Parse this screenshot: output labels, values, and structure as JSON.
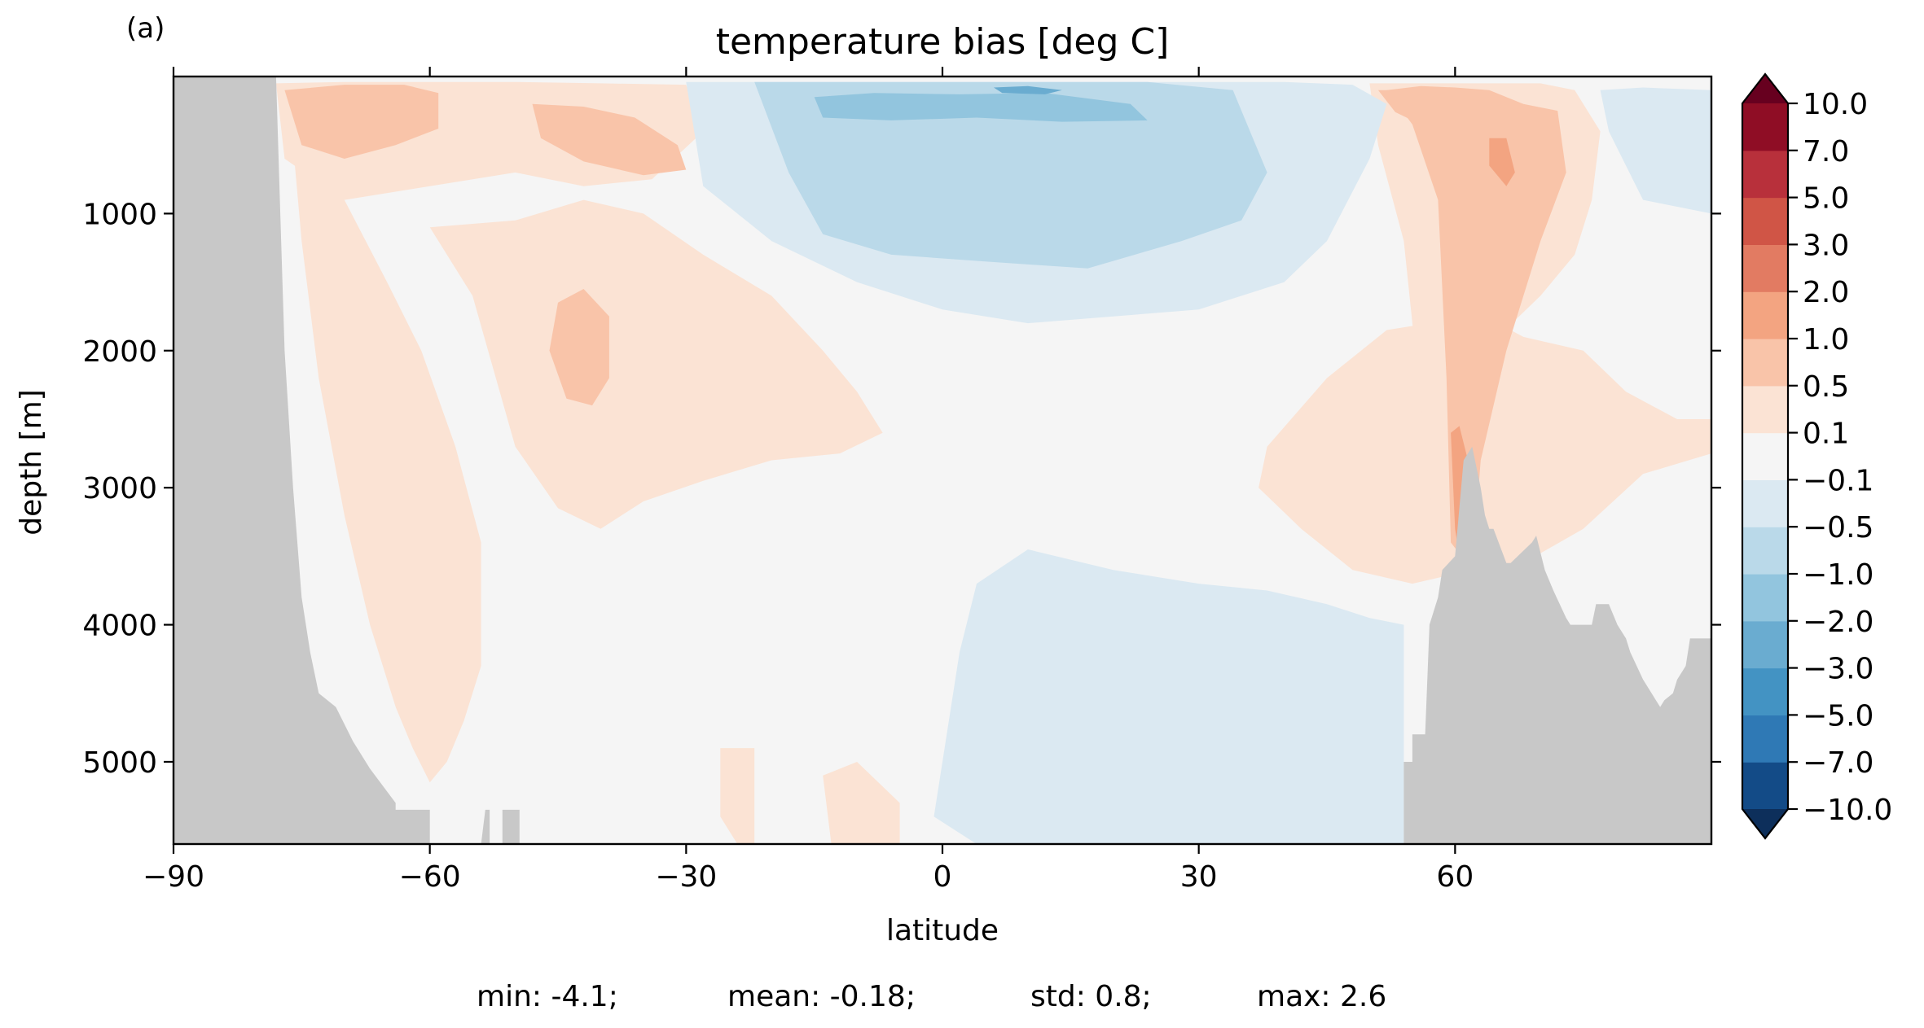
{
  "panel_label": "(a)",
  "chart_data": {
    "type": "heatmap",
    "title": "temperature bias [deg C]",
    "xlabel": "latitude",
    "ylabel": "depth [m]",
    "xlim": [
      -90,
      90
    ],
    "ylim": [
      5600,
      0
    ],
    "y_inverted": true,
    "x_ticks": [
      -90,
      -60,
      -30,
      0,
      30,
      60
    ],
    "x_tick_labels": [
      "−90",
      "−60",
      "−30",
      "0",
      "30",
      "60"
    ],
    "y_ticks": [
      1000,
      2000,
      3000,
      4000,
      5000
    ],
    "y_tick_labels": [
      "1000",
      "2000",
      "3000",
      "4000",
      "5000"
    ],
    "grid": false,
    "land_mask_color": "#c8c8c8",
    "colorbar": {
      "levels": [
        -10,
        -7,
        -5,
        -3,
        -2,
        -1,
        -0.5,
        -0.1,
        0.1,
        0.5,
        1,
        2,
        3,
        5,
        7,
        10
      ],
      "tick_labels": [
        "−10.0",
        "−7.0",
        "−5.0",
        "−3.0",
        "−2.0",
        "−1.0",
        "−0.5",
        "−0.1",
        "0.1",
        "0.5",
        "1.0",
        "2.0",
        "3.0",
        "5.0",
        "7.0",
        "10.0"
      ],
      "colors": [
        "#134b87",
        "#2f79b5",
        "#4393c3",
        "#6aacd0",
        "#92c5de",
        "#bad9e9",
        "#dbe9f2",
        "#f5f5f5",
        "#fbe3d4",
        "#f9c4a9",
        "#f3a481",
        "#e27b62",
        "#d05546",
        "#b8303b",
        "#8f0d25"
      ],
      "extend": "both",
      "under_color": "#0d2f5b",
      "over_color": "#67001f"
    },
    "regions": [
      {
        "name": "southern-deep-warm",
        "value": 0.3,
        "lat": [
          -77.5,
          -76,
          -75,
          -73,
          -70,
          -67,
          -64,
          -62,
          -60,
          -58,
          -56,
          -54,
          -54,
          -57,
          -61,
          -65,
          -70,
          -74,
          -76
        ],
        "depth": [
          100,
          500,
          1200,
          2200,
          3200,
          4000,
          4600,
          4900,
          5150,
          5000,
          4700,
          4300,
          3400,
          2700,
          2000,
          1500,
          900,
          500,
          200
        ]
      },
      {
        "name": "atlantic-mid-warm",
        "value": 0.3,
        "lat": [
          -60,
          -50,
          -42,
          -35,
          -28,
          -20,
          -14,
          -10,
          -7,
          -12,
          -20,
          -28,
          -35,
          -40,
          -45,
          -50,
          -55
        ],
        "depth": [
          1100,
          1050,
          900,
          1000,
          1300,
          1600,
          2000,
          2300,
          2600,
          2750,
          2800,
          2950,
          3100,
          3300,
          3150,
          2700,
          1600
        ]
      },
      {
        "name": "southern-surface-warm",
        "value": 0.3,
        "lat": [
          -78,
          -70,
          -60,
          -50,
          -40,
          -30,
          -28,
          -34,
          -42,
          -50,
          -60,
          -70,
          -77
        ],
        "depth": [
          50,
          40,
          40,
          40,
          50,
          60,
          400,
          750,
          800,
          700,
          800,
          900,
          600
        ]
      },
      {
        "name": "southern-surface-moderate",
        "value": 0.8,
        "lat": [
          -77,
          -70,
          -63,
          -59,
          -59,
          -64,
          -70,
          -75
        ],
        "depth": [
          100,
          60,
          60,
          120,
          380,
          500,
          600,
          500
        ]
      },
      {
        "name": "southern-mid-surface-moderate",
        "value": 0.8,
        "lat": [
          -48,
          -42,
          -36,
          -31,
          -30,
          -35,
          -42,
          -47
        ],
        "depth": [
          200,
          220,
          300,
          500,
          680,
          720,
          620,
          450
        ]
      },
      {
        "name": "southern-intermediate-moderate",
        "value": 0.8,
        "lat": [
          -45,
          -42,
          -39,
          -39,
          -41,
          -44,
          -46
        ],
        "depth": [
          1650,
          1550,
          1750,
          2200,
          2400,
          2350,
          2000
        ]
      },
      {
        "name": "northern-deep-warm",
        "value": 0.3,
        "lat": [
          38,
          45,
          52,
          57,
          62,
          68,
          75,
          80,
          86,
          90,
          90,
          82,
          75,
          68,
          62,
          55,
          48,
          42,
          37
        ],
        "depth": [
          2700,
          2200,
          1850,
          1800,
          1700,
          1900,
          2000,
          2300,
          2500,
          2500,
          2750,
          2900,
          3300,
          3550,
          3600,
          3700,
          3600,
          3300,
          3000
        ]
      },
      {
        "name": "northern-column-warm",
        "value": 0.3,
        "lat": [
          50,
          55,
          60,
          65,
          70,
          74,
          77,
          76,
          74,
          70,
          65,
          60,
          58,
          54,
          51
        ],
        "depth": [
          50,
          50,
          50,
          50,
          50,
          100,
          400,
          900,
          1300,
          1600,
          1900,
          2500,
          3600,
          1200,
          500
        ]
      },
      {
        "name": "northern-column-moderate",
        "value": 0.8,
        "lat": [
          52,
          56,
          60,
          64,
          68,
          72,
          73,
          70,
          66,
          63,
          62,
          59.5,
          59,
          58,
          55
        ],
        "depth": [
          100,
          70,
          80,
          100,
          200,
          250,
          700,
          1200,
          2000,
          2800,
          3600,
          3400,
          2200,
          900,
          350
        ]
      },
      {
        "name": "northern-column-strong",
        "value": 1.5,
        "lat": [
          59.5,
          60.5,
          61.5,
          62,
          61,
          60
        ],
        "depth": [
          2600,
          2550,
          2800,
          3200,
          3700,
          3300
        ]
      },
      {
        "name": "northern-surface-moderate",
        "value": 0.8,
        "lat": [
          51,
          57,
          59,
          57,
          53
        ],
        "depth": [
          100,
          100,
          200,
          380,
          260
        ]
      },
      {
        "name": "northern-subsurface-strong",
        "value": 1.5,
        "lat": [
          64,
          66,
          67,
          66,
          64
        ],
        "depth": [
          450,
          450,
          700,
          800,
          650
        ]
      },
      {
        "name": "deep-south-warm-patch",
        "value": 0.3,
        "lat": [
          -26,
          -22,
          -22,
          -24,
          -26
        ],
        "depth": [
          4900,
          4900,
          5600,
          5600,
          5400
        ]
      },
      {
        "name": "deep-tropical-warm-patch",
        "value": 0.3,
        "lat": [
          -14,
          -10,
          -5,
          -5,
          -13
        ],
        "depth": [
          5100,
          5000,
          5300,
          5600,
          5600
        ]
      },
      {
        "name": "upper-cold",
        "value": -0.3,
        "lat": [
          -30,
          -20,
          -10,
          0,
          10,
          20,
          30,
          40,
          48,
          52,
          50,
          45,
          40,
          30,
          20,
          10,
          0,
          -10,
          -20,
          -28
        ],
        "depth": [
          40,
          40,
          40,
          40,
          40,
          40,
          40,
          40,
          60,
          200,
          600,
          1200,
          1500,
          1700,
          1750,
          1800,
          1700,
          1500,
          1200,
          800
        ]
      },
      {
        "name": "deep-equatorial-cold",
        "value": -0.3,
        "lat": [
          4,
          10,
          20,
          30,
          38,
          45,
          50,
          54,
          54,
          40,
          20,
          10,
          4,
          -1,
          2
        ],
        "depth": [
          3700,
          3450,
          3600,
          3700,
          3750,
          3850,
          3950,
          4000,
          5600,
          5600,
          5600,
          5600,
          5600,
          5400,
          4200
        ]
      },
      {
        "name": "upper-cold-moderate",
        "value": -0.8,
        "lat": [
          -22,
          -12,
          0,
          12,
          24,
          34,
          38,
          35,
          28,
          17,
          5,
          -6,
          -14,
          -18
        ],
        "depth": [
          40,
          40,
          40,
          40,
          40,
          100,
          700,
          1050,
          1200,
          1400,
          1350,
          1300,
          1150,
          700
        ]
      },
      {
        "name": "arctic-surface-cold",
        "value": -0.3,
        "lat": [
          77,
          82,
          90,
          90,
          82,
          78
        ],
        "depth": [
          100,
          80,
          100,
          1000,
          900,
          400
        ]
      },
      {
        "name": "upper-cold-strong",
        "value": -1.5,
        "lat": [
          -15,
          -8,
          2,
          12,
          22,
          24,
          14,
          4,
          -6,
          -14
        ],
        "depth": [
          150,
          120,
          130,
          120,
          200,
          320,
          330,
          300,
          320,
          300
        ]
      },
      {
        "name": "upper-cold-core",
        "value": -2.5,
        "lat": [
          6,
          10,
          14,
          12,
          7
        ],
        "depth": [
          80,
          70,
          100,
          130,
          120
        ]
      }
    ],
    "land_mask": [
      {
        "name": "antarctica",
        "lat": [
          -90,
          -78,
          -77.5,
          -77,
          -76,
          -75,
          -74,
          -73,
          -71,
          -69,
          -67,
          -64,
          -64,
          -60,
          -60,
          -90
        ],
        "depth": [
          0,
          0,
          1000,
          2000,
          3000,
          3800,
          4200,
          4500,
          4600,
          4850,
          5050,
          5300,
          5350,
          5350,
          5600,
          5600
        ]
      },
      {
        "name": "southern-seamount",
        "value": null,
        "lat": [
          -54,
          -53.5,
          -53,
          -53,
          -51.5,
          -51.5,
          -49.5,
          -49.5
        ],
        "depth": [
          5600,
          5350,
          5350,
          5600,
          5600,
          5350,
          5350,
          5600
        ]
      },
      {
        "name": "northern-ridges",
        "lat": [
          54,
          54,
          55,
          55,
          56.5,
          57,
          58,
          58.5,
          60,
          61,
          62,
          63,
          63.5,
          64,
          64.5,
          66,
          66.5,
          69,
          69.5,
          70.5,
          71.5,
          73,
          73.5,
          76,
          76.5,
          78,
          79,
          80,
          80.5,
          82,
          83,
          84,
          84.5,
          85.5,
          86,
          87,
          87.5,
          90,
          90
        ],
        "depth": [
          5600,
          5000,
          5000,
          4800,
          4800,
          4000,
          3800,
          3600,
          3500,
          2800,
          2700,
          3000,
          3200,
          3300,
          3300,
          3550,
          3550,
          3400,
          3350,
          3600,
          3750,
          3950,
          4000,
          4000,
          3850,
          3850,
          4000,
          4100,
          4200,
          4400,
          4500,
          4600,
          4550,
          4500,
          4400,
          4300,
          4100,
          4100,
          5600
        ]
      }
    ],
    "stats_line": {
      "min": "min: -4.1;",
      "mean": "mean: -0.18;",
      "std": "std: 0.8;",
      "max": "max: 2.6"
    }
  }
}
